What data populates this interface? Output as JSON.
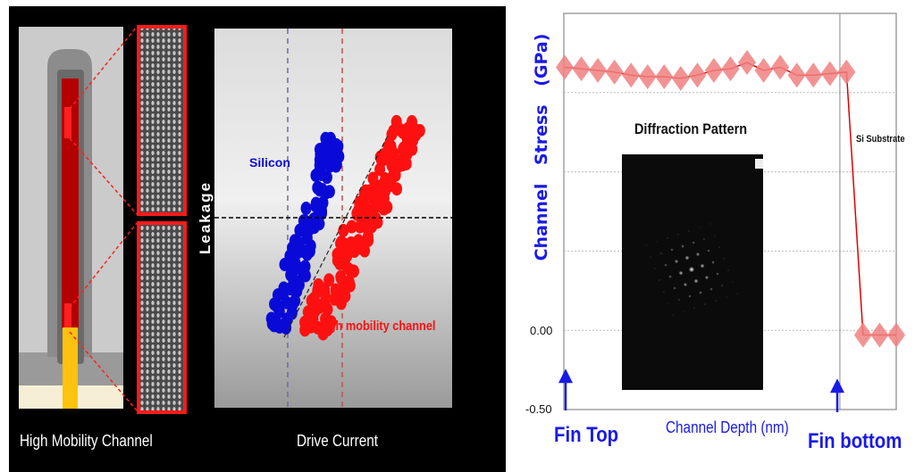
{
  "left_panel": {
    "caption_left": "High Mobility Channel",
    "caption_right": "Drive Current",
    "y_axis_label": "Leakage",
    "series_labels": [
      "Silicon",
      "High mobility channel"
    ],
    "colors": {
      "silicon": "#0a0ad8",
      "high_mobility": "#ff1010",
      "background": "#000000"
    }
  },
  "chart_data": [
    {
      "type": "scatter",
      "xlabel": "Drive Current",
      "ylabel": "Leakage",
      "series": [
        {
          "name": "Silicon",
          "color": "#0a0ad8"
        },
        {
          "name": "High mobility channel",
          "color": "#ff1010"
        }
      ],
      "grid": false
    },
    {
      "type": "line",
      "ylabel": "Channel Stress (GPa)",
      "xlabel": "Channel Depth (nm)",
      "ylim": [
        -0.5,
        2.0
      ],
      "ytick_labels": [
        "0.00",
        "-0.50"
      ],
      "gridlines_y": [
        0.5,
        1.0,
        1.5
      ],
      "grid": true,
      "marker": "diamond",
      "color": "#f08080",
      "line_color": "#e00000",
      "x": [
        0,
        1,
        2,
        3,
        4,
        5,
        6,
        7,
        8,
        9,
        10,
        11,
        12,
        13,
        14,
        15,
        16,
        17,
        18,
        19,
        20
      ],
      "y": [
        1.66,
        1.65,
        1.64,
        1.63,
        1.61,
        1.6,
        1.6,
        1.59,
        1.61,
        1.64,
        1.65,
        1.69,
        1.64,
        1.66,
        1.61,
        1.61,
        1.62,
        1.63,
        -0.03,
        -0.03,
        -0.03
      ],
      "annotations": {
        "fin_top": "Fin Top",
        "fin_bottom": "Fin bottom",
        "substrate": "Si Substrate",
        "inset_title": "Diffraction Pattern"
      },
      "fin_bottom_x": 16.6
    }
  ]
}
